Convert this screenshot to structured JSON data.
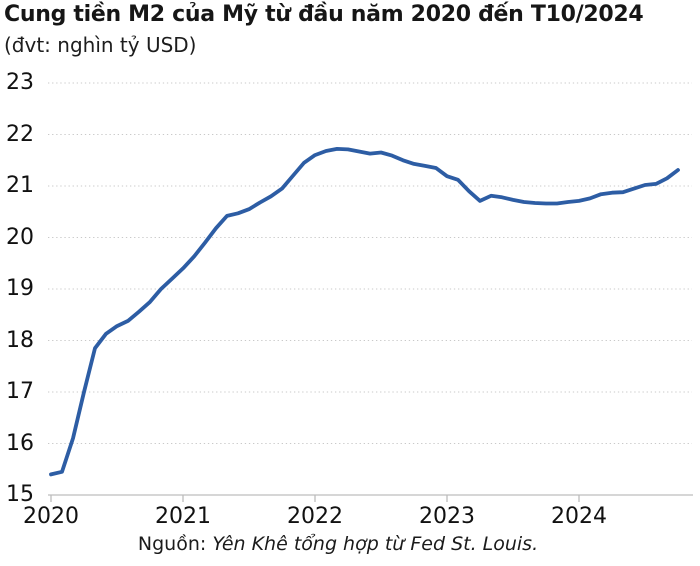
{
  "header": {
    "title": "Cung tiền M2 của Mỹ từ đầu năm 2020 đến T10/2024",
    "subtitle": "(đvt: nghìn tỷ USD)"
  },
  "source": {
    "prefix": "Nguồn: ",
    "text": "Yên Khê tổng hợp từ Fed St. Louis."
  },
  "colors": {
    "line": "#2d5da4",
    "grid": "#c9c9c9",
    "axis": "#bdbdbd",
    "text": "#161616"
  },
  "chart_data": {
    "type": "line",
    "title": "Cung tiền M2 của Mỹ từ đầu năm 2020 đến T10/2024",
    "unit_label": "(đvt: nghìn tỷ USD)",
    "xlabel": "",
    "ylabel": "nghìn tỷ USD",
    "ylim": [
      15,
      23
    ],
    "y_ticks": [
      15,
      16,
      17,
      18,
      19,
      20,
      21,
      22,
      23
    ],
    "x_ticks": [
      2020,
      2021,
      2022,
      2023,
      2024
    ],
    "grid": "horizontal-dotted",
    "legend": "none",
    "series": [
      {
        "name": "M2",
        "color": "#2d5da4",
        "months": [
          "2020-01",
          "2020-02",
          "2020-03",
          "2020-04",
          "2020-05",
          "2020-06",
          "2020-07",
          "2020-08",
          "2020-09",
          "2020-10",
          "2020-11",
          "2020-12",
          "2021-01",
          "2021-02",
          "2021-03",
          "2021-04",
          "2021-05",
          "2021-06",
          "2021-07",
          "2021-08",
          "2021-09",
          "2021-10",
          "2021-11",
          "2021-12",
          "2022-01",
          "2022-02",
          "2022-03",
          "2022-04",
          "2022-05",
          "2022-06",
          "2022-07",
          "2022-08",
          "2022-09",
          "2022-10",
          "2022-11",
          "2022-12",
          "2023-01",
          "2023-02",
          "2023-03",
          "2023-04",
          "2023-05",
          "2023-06",
          "2023-07",
          "2023-08",
          "2023-09",
          "2023-10",
          "2023-11",
          "2023-12",
          "2024-01",
          "2024-02",
          "2024-03",
          "2024-04",
          "2024-05",
          "2024-06",
          "2024-07",
          "2024-08",
          "2024-09",
          "2024-10"
        ],
        "values": [
          15.4,
          15.45,
          16.1,
          17.0,
          17.85,
          18.13,
          18.28,
          18.38,
          18.56,
          18.75,
          19.0,
          19.2,
          19.4,
          19.63,
          19.9,
          20.18,
          20.42,
          20.47,
          20.55,
          20.68,
          20.8,
          20.95,
          21.2,
          21.45,
          21.6,
          21.68,
          21.72,
          21.71,
          21.67,
          21.63,
          21.65,
          21.59,
          21.5,
          21.43,
          21.39,
          21.35,
          21.19,
          21.12,
          20.9,
          20.71,
          20.81,
          20.78,
          20.73,
          20.69,
          20.67,
          20.66,
          20.66,
          20.69,
          20.71,
          20.76,
          20.84,
          20.87,
          20.88,
          20.95,
          21.02,
          21.04,
          21.15,
          21.31
        ]
      }
    ]
  }
}
